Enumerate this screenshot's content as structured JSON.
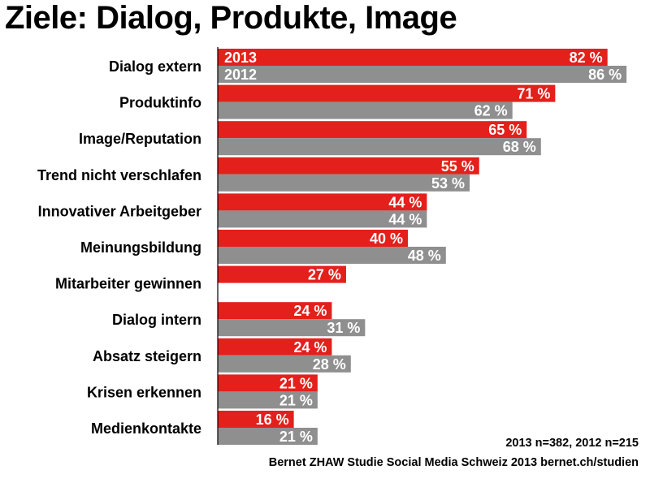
{
  "title": "Ziele: Dialog, Produkte, Image",
  "note": "2013 n=382, 2012 n=215",
  "source": "Bernet ZHAW Studie Social Media Schweiz 2013 bernet.ch/studien",
  "colors": {
    "series_2013": "#e3201b",
    "series_2012": "#8f8f8f",
    "axis": "#000000"
  },
  "chart_data": {
    "type": "bar",
    "orientation": "horizontal",
    "categories": [
      "Dialog extern",
      "Produktinfo",
      "Image/Reputation",
      "Trend nicht verschlafen",
      "Innovativer Arbeitgeber",
      "Meinungsbildung",
      "Mitarbeiter gewinnen",
      "Dialog intern",
      "Absatz steigern",
      "Krisen erkennen",
      "Medienkontakte"
    ],
    "series": [
      {
        "name": "2013",
        "values": [
          82,
          71,
          65,
          55,
          44,
          40,
          27,
          24,
          24,
          21,
          16
        ]
      },
      {
        "name": "2012",
        "values": [
          86,
          62,
          68,
          53,
          44,
          48,
          null,
          31,
          28,
          21,
          21
        ]
      }
    ],
    "value_suffix": " %",
    "xlim": [
      0,
      86
    ],
    "legend": "inside-first-bars"
  }
}
